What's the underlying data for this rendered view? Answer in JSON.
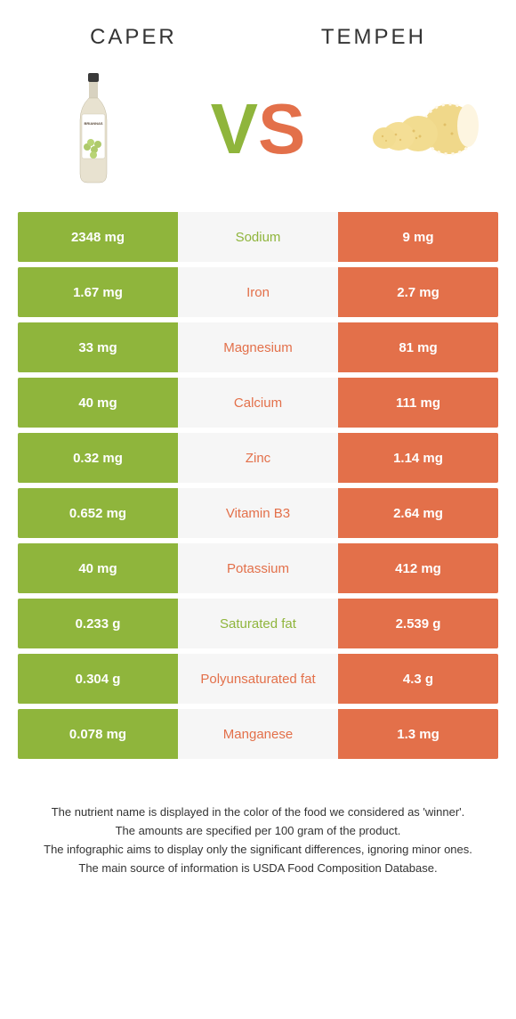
{
  "header": {
    "left_title": "Caper",
    "right_title": "Tempeh"
  },
  "vs": {
    "v": "V",
    "s": "S"
  },
  "colors": {
    "green": "#8fb53c",
    "orange": "#e3704a",
    "row_mid_bg": "#f6f6f6",
    "text": "#333333"
  },
  "table": {
    "rows": [
      {
        "left": "2348 mg",
        "label": "Sodium",
        "right": "9 mg",
        "winner": "green"
      },
      {
        "left": "1.67 mg",
        "label": "Iron",
        "right": "2.7 mg",
        "winner": "orange"
      },
      {
        "left": "33 mg",
        "label": "Magnesium",
        "right": "81 mg",
        "winner": "orange"
      },
      {
        "left": "40 mg",
        "label": "Calcium",
        "right": "111 mg",
        "winner": "orange"
      },
      {
        "left": "0.32 mg",
        "label": "Zinc",
        "right": "1.14 mg",
        "winner": "orange"
      },
      {
        "left": "0.652 mg",
        "label": "Vitamin B3",
        "right": "2.64 mg",
        "winner": "orange"
      },
      {
        "left": "40 mg",
        "label": "Potassium",
        "right": "412 mg",
        "winner": "orange"
      },
      {
        "left": "0.233 g",
        "label": "Saturated fat",
        "right": "2.539 g",
        "winner": "green"
      },
      {
        "left": "0.304 g",
        "label": "Polyunsaturated fat",
        "right": "4.3 g",
        "winner": "orange"
      },
      {
        "left": "0.078 mg",
        "label": "Manganese",
        "right": "1.3 mg",
        "winner": "orange"
      }
    ]
  },
  "footnotes": [
    "The nutrient name is displayed in the color of the food we considered as 'winner'.",
    "The amounts are specified per 100 gram of the product.",
    "The infographic aims to display only the significant differences, ignoring minor ones.",
    "The main source of information is USDA Food Composition Database."
  ]
}
